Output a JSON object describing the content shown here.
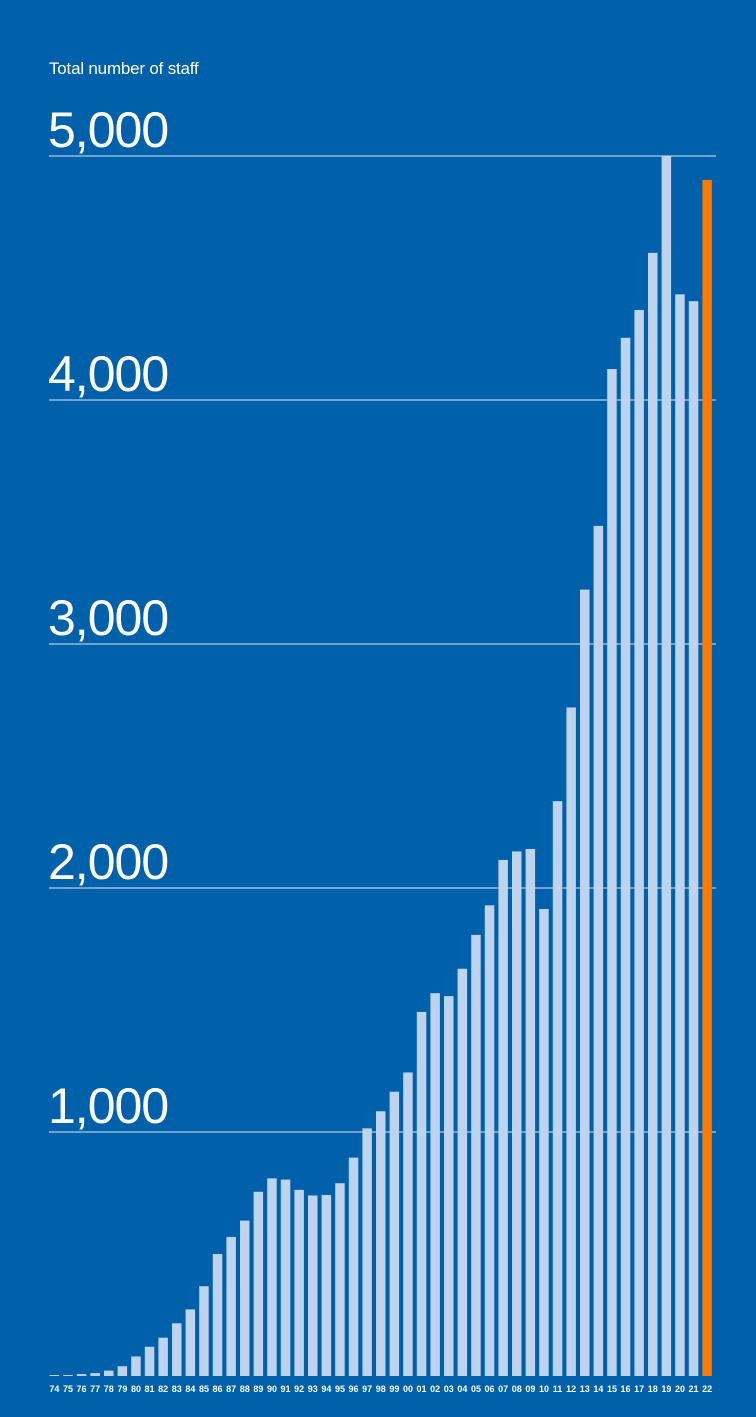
{
  "chart_data": {
    "type": "bar",
    "title": "Total number of staff",
    "categories": [
      "74",
      "75",
      "76",
      "77",
      "78",
      "79",
      "80",
      "81",
      "82",
      "83",
      "84",
      "85",
      "86",
      "87",
      "88",
      "89",
      "90",
      "91",
      "92",
      "93",
      "94",
      "95",
      "96",
      "97",
      "98",
      "99",
      "00",
      "01",
      "02",
      "03",
      "04",
      "05",
      "06",
      "07",
      "08",
      "09",
      "10",
      "11",
      "12",
      "13",
      "14",
      "15",
      "16",
      "17",
      "18",
      "19",
      "20",
      "21",
      "22"
    ],
    "values": [
      3,
      3,
      8,
      12,
      22,
      40,
      80,
      120,
      157,
      216,
      273,
      368,
      500,
      570,
      637,
      755,
      810,
      805,
      763,
      740,
      742,
      790,
      895,
      1015,
      1085,
      1165,
      1244,
      1492,
      1569,
      1557,
      1669,
      1808,
      1929,
      2115,
      2150,
      2160,
      1914,
      2356,
      2740,
      3223,
      3484,
      4127,
      4255,
      4369,
      4603,
      5000,
      4433,
      4405,
      4902
    ],
    "highlight_last": true,
    "ylim": [
      0,
      5000
    ],
    "yticks": [
      1000,
      2000,
      3000,
      4000,
      5000
    ],
    "ytick_labels": [
      "1,000",
      "2,000",
      "3,000",
      "4,000",
      "5,000"
    ],
    "grid": true,
    "colors": {
      "background": "#0061AA",
      "bar": "#BED3EE",
      "highlight": "#FF7A00",
      "grid": "#DCE7F4",
      "text": "#FFFFFF"
    }
  }
}
